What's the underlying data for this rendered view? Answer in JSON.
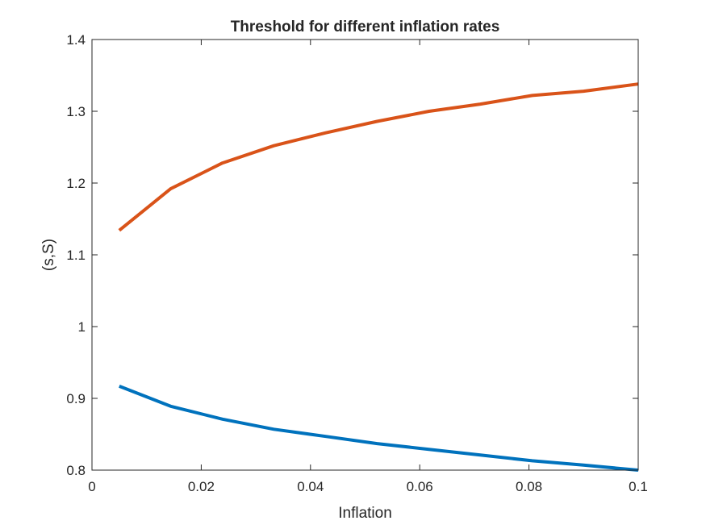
{
  "chart_data": {
    "type": "line",
    "title": "Threshold for different inflation rates",
    "xlabel": "Inflation",
    "ylabel": "(s,S)",
    "xlim": [
      0,
      0.1
    ],
    "ylim": [
      0.8,
      1.4
    ],
    "xticks": [
      0,
      0.02,
      0.04,
      0.06,
      0.08,
      0.1
    ],
    "xtick_labels": [
      "0",
      "0.02",
      "0.04",
      "0.06",
      "0.08",
      "0.1"
    ],
    "yticks": [
      0.8,
      0.9,
      1.0,
      1.1,
      1.2,
      1.3,
      1.4
    ],
    "ytick_labels": [
      "0.8",
      "0.9",
      "1",
      "1.1",
      "1.2",
      "1.3",
      "1.4"
    ],
    "grid": false,
    "series": [
      {
        "color": "#0072BD",
        "x": [
          0.005,
          0.0144,
          0.0239,
          0.0333,
          0.0428,
          0.0522,
          0.0617,
          0.0711,
          0.0806,
          0.09,
          0.1
        ],
        "y": [
          0.917,
          0.889,
          0.871,
          0.857,
          0.847,
          0.837,
          0.829,
          0.821,
          0.813,
          0.807,
          0.8
        ]
      },
      {
        "color": "#D95319",
        "x": [
          0.005,
          0.0144,
          0.0239,
          0.0333,
          0.0428,
          0.0522,
          0.0617,
          0.0711,
          0.0806,
          0.09,
          0.1
        ],
        "y": [
          1.134,
          1.192,
          1.228,
          1.252,
          1.27,
          1.286,
          1.3,
          1.31,
          1.322,
          1.328,
          1.338
        ]
      }
    ]
  }
}
